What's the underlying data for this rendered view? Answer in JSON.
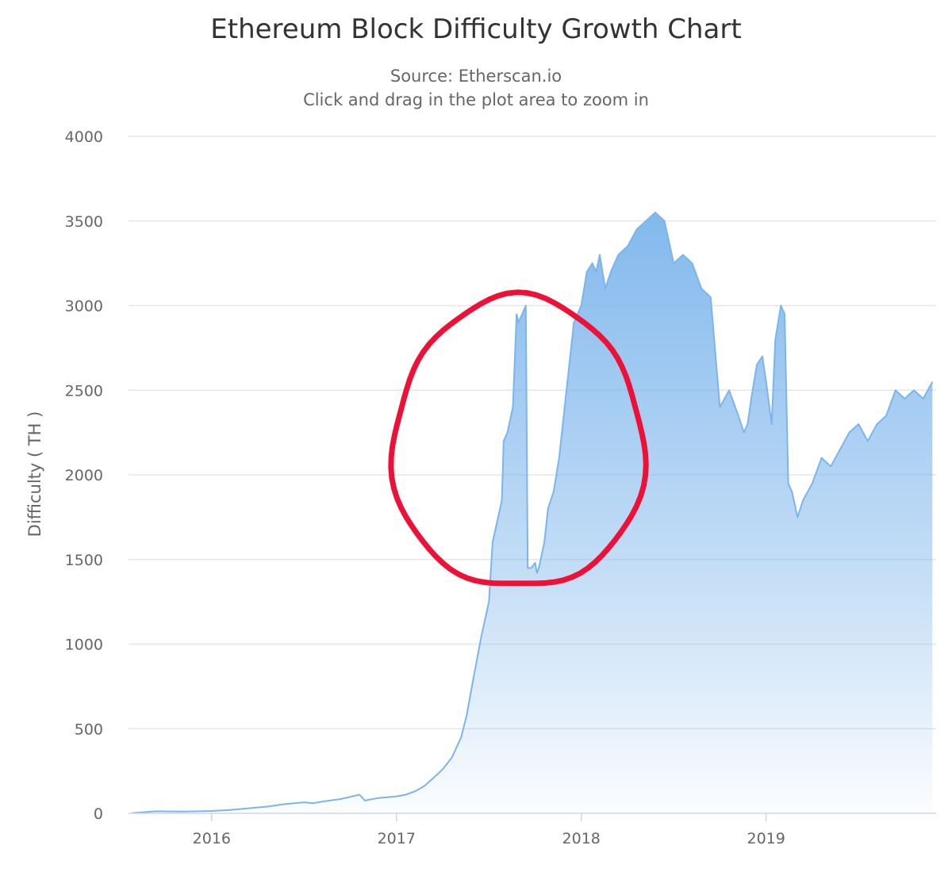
{
  "chart_data": {
    "type": "area",
    "title": "Ethereum Block Difficulty Growth Chart",
    "subtitle": "Source: Etherscan.io",
    "subtitle2": "Click and drag in the plot area to zoom in",
    "xlabel": "",
    "ylabel": "Difficulty ( TH )",
    "xlim": [
      2015.55,
      2019.92
    ],
    "ylim": [
      0,
      4000
    ],
    "x_ticks": [
      2016,
      2017,
      2018,
      2019
    ],
    "x_tick_labels": [
      "2016",
      "2017",
      "2018",
      "2019"
    ],
    "y_ticks": [
      0,
      500,
      1000,
      1500,
      2000,
      2500,
      3000,
      3500,
      4000
    ],
    "y_tick_labels": [
      "0",
      "500",
      "1000",
      "1500",
      "2000",
      "2500",
      "3000",
      "3500",
      "4000"
    ],
    "grid": true,
    "legend": false,
    "series": [
      {
        "name": "Difficulty",
        "color": "#7cb5ec",
        "x": [
          2015.57,
          2015.7,
          2015.85,
          2016.0,
          2016.1,
          2016.2,
          2016.3,
          2016.4,
          2016.5,
          2016.55,
          2016.6,
          2016.7,
          2016.8,
          2016.83,
          2016.85,
          2016.9,
          2017.0,
          2017.05,
          2017.1,
          2017.15,
          2017.2,
          2017.25,
          2017.3,
          2017.35,
          2017.38,
          2017.42,
          2017.46,
          2017.5,
          2017.52,
          2017.55,
          2017.57,
          2017.58,
          2017.6,
          2017.62,
          2017.63,
          2017.65,
          2017.66,
          2017.68,
          2017.7,
          2017.71,
          2017.73,
          2017.75,
          2017.76,
          2017.77,
          2017.78,
          2017.79,
          2017.8,
          2017.82,
          2017.85,
          2017.88,
          2017.9,
          2017.93,
          2017.96,
          2018.0,
          2018.03,
          2018.06,
          2018.08,
          2018.1,
          2018.13,
          2018.16,
          2018.2,
          2018.25,
          2018.3,
          2018.35,
          2018.4,
          2018.45,
          2018.5,
          2018.55,
          2018.6,
          2018.65,
          2018.7,
          2018.75,
          2018.8,
          2018.85,
          2018.88,
          2018.9,
          2018.92,
          2018.95,
          2018.98,
          2019.0,
          2019.03,
          2019.05,
          2019.08,
          2019.1,
          2019.12,
          2019.14,
          2019.15,
          2019.17,
          2019.2,
          2019.25,
          2019.3,
          2019.35,
          2019.4,
          2019.45,
          2019.5,
          2019.55,
          2019.6,
          2019.65,
          2019.7,
          2019.75,
          2019.8,
          2019.85,
          2019.9
        ],
        "y": [
          2,
          12,
          11,
          14,
          20,
          30,
          40,
          55,
          65,
          60,
          70,
          85,
          110,
          75,
          80,
          90,
          100,
          110,
          130,
          160,
          210,
          260,
          330,
          450,
          580,
          820,
          1050,
          1250,
          1600,
          1750,
          1850,
          2200,
          2250,
          2350,
          2400,
          2950,
          2900,
          2950,
          3000,
          1450,
          1450,
          1480,
          1420,
          1450,
          1500,
          1550,
          1600,
          1800,
          1900,
          2100,
          2300,
          2600,
          2900,
          3000,
          3200,
          3250,
          3200,
          3300,
          3100,
          3200,
          3300,
          3350,
          3450,
          3500,
          3550,
          3500,
          3250,
          3300,
          3250,
          3100,
          3050,
          2400,
          2500,
          2350,
          2250,
          2300,
          2450,
          2650,
          2700,
          2550,
          2300,
          2800,
          3000,
          2950,
          1950,
          1900,
          1850,
          1750,
          1850,
          1950,
          2100,
          2050,
          2150,
          2250,
          2300,
          2200,
          2300,
          2350,
          2500,
          2450,
          2500,
          2450,
          2550
        ]
      }
    ],
    "annotation": {
      "kind": "hand-drawn circle",
      "color": "#ee1137",
      "center_x": 2017.66,
      "center_y": 2180,
      "radius_x": 0.68,
      "radius_y": 860
    }
  }
}
